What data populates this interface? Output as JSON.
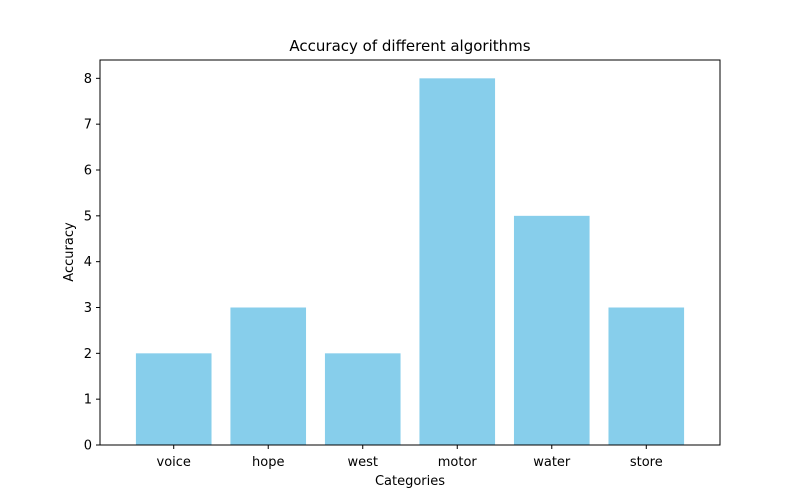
{
  "chart_data": {
    "type": "bar",
    "title": "Accuracy of different algorithms",
    "xlabel": "Categories",
    "ylabel": "Accuracy",
    "categories": [
      "voice",
      "hope",
      "west",
      "motor",
      "water",
      "store"
    ],
    "values": [
      2,
      3,
      2,
      8,
      5,
      3
    ],
    "ylim": [
      0,
      8.4
    ],
    "yticks": [
      0,
      1,
      2,
      3,
      4,
      5,
      6,
      7,
      8
    ],
    "grid": false,
    "bar_color": "#87CEEB"
  }
}
